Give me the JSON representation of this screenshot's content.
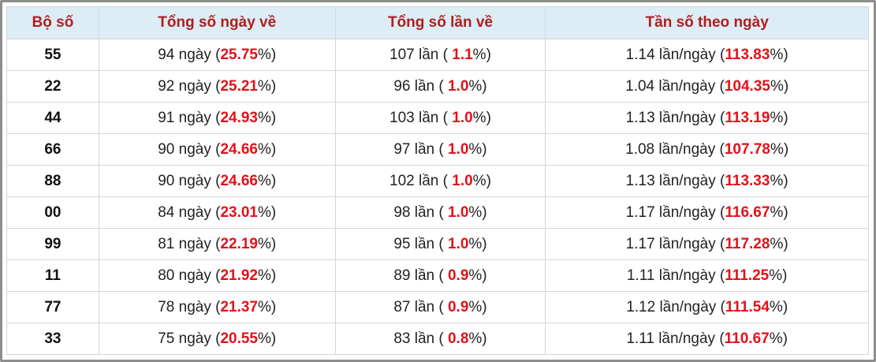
{
  "table": {
    "header": [
      "Bộ số",
      "Tổng số ngày về",
      "Tổng số lần về",
      "Tần số theo ngày"
    ],
    "rows": [
      [
        "55",
        [
          "94 ngày (",
          "25.75",
          "%)"
        ],
        [
          "107 lần ( ",
          "1.1",
          "%)"
        ],
        [
          "1.14 lần/ngày (",
          "113.83",
          "%)"
        ]
      ],
      [
        "22",
        [
          "92 ngày (",
          "25.21",
          "%)"
        ],
        [
          "96 lần ( ",
          "1.0",
          "%)"
        ],
        [
          "1.04 lần/ngày (",
          "104.35",
          "%)"
        ]
      ],
      [
        "44",
        [
          "91 ngày (",
          "24.93",
          "%)"
        ],
        [
          "103 lần ( ",
          "1.0",
          "%)"
        ],
        [
          "1.13 lần/ngày (",
          "113.19",
          "%)"
        ]
      ],
      [
        "66",
        [
          "90 ngày (",
          "24.66",
          "%)"
        ],
        [
          "97 lần ( ",
          "1.0",
          "%)"
        ],
        [
          "1.08 lần/ngày (",
          "107.78",
          "%)"
        ]
      ],
      [
        "88",
        [
          "90 ngày (",
          "24.66",
          "%)"
        ],
        [
          "102 lần ( ",
          "1.0",
          "%)"
        ],
        [
          "1.13 lần/ngày (",
          "113.33",
          "%)"
        ]
      ],
      [
        "00",
        [
          "84 ngày (",
          "23.01",
          "%)"
        ],
        [
          "98 lần ( ",
          "1.0",
          "%)"
        ],
        [
          "1.17 lần/ngày (",
          "116.67",
          "%)"
        ]
      ],
      [
        "99",
        [
          "81 ngày (",
          "22.19",
          "%)"
        ],
        [
          "95 lần ( ",
          "1.0",
          "%)"
        ],
        [
          "1.17 lần/ngày (",
          "117.28",
          "%)"
        ]
      ],
      [
        "11",
        [
          "80 ngày (",
          "21.92",
          "%)"
        ],
        [
          "89 lần ( ",
          "0.9",
          "%)"
        ],
        [
          "1.11 lần/ngày (",
          "111.25",
          "%)"
        ]
      ],
      [
        "77",
        [
          "78 ngày (",
          "21.37",
          "%)"
        ],
        [
          "87 lần ( ",
          "0.9",
          "%)"
        ],
        [
          "1.12 lần/ngày (",
          "111.54",
          "%)"
        ]
      ],
      [
        "33",
        [
          "75 ngày (",
          "20.55",
          "%)"
        ],
        [
          "83 lần ( ",
          "0.8",
          "%)"
        ],
        [
          "1.11 lần/ngày (",
          "110.67",
          "%)"
        ]
      ]
    ]
  }
}
